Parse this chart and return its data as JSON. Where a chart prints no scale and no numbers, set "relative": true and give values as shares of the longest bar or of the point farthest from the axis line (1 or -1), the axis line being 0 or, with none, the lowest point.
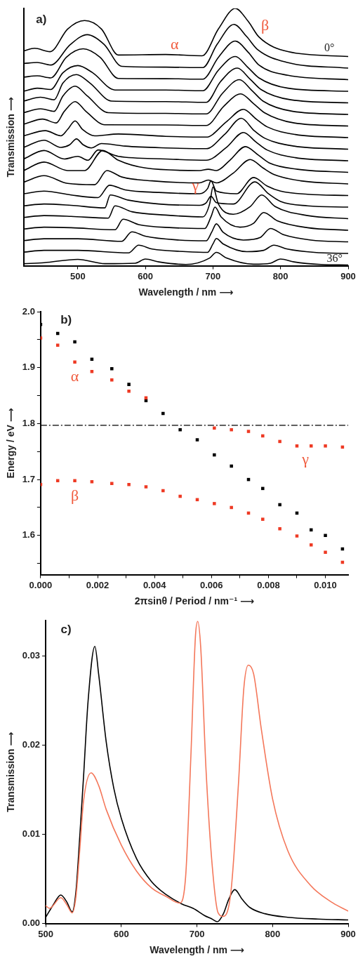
{
  "chart_data": [
    {
      "type": "line",
      "xlabel": "Wavelength / nm ⟶",
      "ylabel": "Transmission ⟶",
      "relative": true,
      "xlim": [
        420,
        900
      ],
      "xticks": [
        500,
        600,
        700,
        800,
        900
      ],
      "annotations": [
        "a)",
        "α",
        "β",
        "γ",
        "0°",
        "36°"
      ],
      "series": [
        {
          "color": "#000000",
          "x": [
            420,
            436,
            459,
            485,
            510,
            535,
            560,
            630,
            684,
            708,
            733,
            752,
            768,
            811,
            900
          ],
          "values": [
            0.835,
            0.845,
            0.832,
            0.92,
            0.953,
            0.92,
            0.819,
            0.821,
            0.816,
            0.92,
            1.0,
            0.95,
            0.889,
            0.832,
            0.813
          ]
        },
        {
          "color": "#000000",
          "x": [
            420,
            440,
            460,
            489,
            514,
            539,
            565,
            630,
            685,
            706,
            731,
            750,
            766,
            810,
            900
          ],
          "values": [
            0.786,
            0.79,
            0.78,
            0.86,
            0.898,
            0.86,
            0.775,
            0.772,
            0.77,
            0.86,
            0.938,
            0.89,
            0.84,
            0.79,
            0.768
          ]
        },
        {
          "color": "#000000",
          "x": [
            420,
            440,
            460,
            483,
            508,
            533,
            560,
            630,
            685,
            708,
            733,
            752,
            768,
            811,
            900
          ],
          "values": [
            0.733,
            0.738,
            0.73,
            0.81,
            0.843,
            0.81,
            0.728,
            0.727,
            0.725,
            0.81,
            0.873,
            0.83,
            0.78,
            0.74,
            0.723
          ]
        },
        {
          "color": "#000000",
          "x": [
            420,
            440,
            460,
            478,
            500,
            522,
            555,
            630,
            685,
            708,
            733,
            752,
            768,
            811,
            900
          ],
          "values": [
            0.678,
            0.69,
            0.685,
            0.75,
            0.778,
            0.75,
            0.683,
            0.683,
            0.68,
            0.76,
            0.813,
            0.77,
            0.73,
            0.69,
            0.678
          ]
        },
        {
          "color": "#000000",
          "x": [
            420,
            445,
            465,
            478,
            498,
            518,
            550,
            630,
            690,
            711,
            736,
            755,
            771,
            815,
            900
          ],
          "values": [
            0.64,
            0.655,
            0.645,
            0.71,
            0.743,
            0.71,
            0.64,
            0.638,
            0.635,
            0.715,
            0.768,
            0.725,
            0.685,
            0.645,
            0.633
          ]
        },
        {
          "color": "#000000",
          "x": [
            420,
            445,
            465,
            478,
            496,
            514,
            545,
            630,
            690,
            714,
            739,
            758,
            774,
            818,
            900
          ],
          "values": [
            0.595,
            0.61,
            0.6,
            0.66,
            0.698,
            0.66,
            0.595,
            0.592,
            0.59,
            0.67,
            0.723,
            0.68,
            0.64,
            0.6,
            0.588
          ]
        },
        {
          "color": "#000000",
          "x": [
            420,
            448,
            468,
            480,
            496,
            512,
            540,
            630,
            690,
            716,
            741,
            760,
            776,
            820,
            900
          ],
          "values": [
            0.55,
            0.57,
            0.555,
            0.6,
            0.638,
            0.6,
            0.548,
            0.547,
            0.545,
            0.62,
            0.668,
            0.63,
            0.595,
            0.555,
            0.543
          ]
        },
        {
          "color": "#000000",
          "x": [
            420,
            452,
            475,
            485,
            496,
            507,
            525,
            560,
            630,
            690,
            720,
            745,
            764,
            780,
            822,
            900
          ],
          "values": [
            0.505,
            0.525,
            0.505,
            0.53,
            0.563,
            0.53,
            0.505,
            0.512,
            0.503,
            0.5,
            0.56,
            0.608,
            0.57,
            0.54,
            0.51,
            0.498
          ]
        },
        {
          "color": "#000000",
          "x": [
            420,
            450,
            475,
            488,
            498,
            508,
            520,
            535,
            570,
            630,
            690,
            717,
            742,
            761,
            777,
            820,
            900
          ],
          "values": [
            0.46,
            0.488,
            0.46,
            0.47,
            0.493,
            0.47,
            0.458,
            0.475,
            0.465,
            0.458,
            0.455,
            0.51,
            0.573,
            0.525,
            0.495,
            0.465,
            0.453
          ]
        },
        {
          "color": "#000000",
          "x": [
            420,
            450,
            480,
            500,
            515,
            530,
            560,
            630,
            690,
            720,
            745,
            764,
            780,
            822,
            900
          ],
          "values": [
            0.415,
            0.448,
            0.415,
            0.425,
            0.41,
            0.45,
            0.425,
            0.415,
            0.41,
            0.46,
            0.518,
            0.48,
            0.45,
            0.42,
            0.408
          ]
        },
        {
          "color": "#000000",
          "x": [
            420,
            450,
            485,
            510,
            537,
            560,
            600,
            680,
            693,
            705,
            725,
            748,
            767,
            783,
            825,
            900
          ],
          "values": [
            0.37,
            0.403,
            0.37,
            0.37,
            0.448,
            0.41,
            0.38,
            0.37,
            0.375,
            0.37,
            0.41,
            0.463,
            0.43,
            0.4,
            0.375,
            0.363
          ]
        },
        {
          "color": "#000000",
          "x": [
            420,
            450,
            485,
            525,
            543,
            565,
            610,
            680,
            693,
            705,
            730,
            755,
            774,
            790,
            830,
            900
          ],
          "values": [
            0.325,
            0.35,
            0.32,
            0.315,
            0.37,
            0.345,
            0.33,
            0.322,
            0.333,
            0.322,
            0.36,
            0.413,
            0.38,
            0.355,
            0.33,
            0.318
          ]
        },
        {
          "color": "#000000",
          "x": [
            420,
            450,
            490,
            530,
            547,
            570,
            620,
            680,
            692,
            697,
            705,
            735,
            760,
            780,
            800,
            840,
            900
          ],
          "values": [
            0.28,
            0.29,
            0.275,
            0.265,
            0.313,
            0.295,
            0.285,
            0.28,
            0.3,
            0.33,
            0.29,
            0.28,
            0.343,
            0.31,
            0.29,
            0.278,
            0.273
          ]
        },
        {
          "color": "#000000",
          "x": [
            420,
            450,
            490,
            540,
            548,
            575,
            620,
            680,
            690,
            697,
            705,
            730,
            762,
            782,
            800,
            840,
            900
          ],
          "values": [
            0.233,
            0.24,
            0.235,
            0.225,
            0.275,
            0.255,
            0.24,
            0.235,
            0.245,
            0.27,
            0.245,
            0.24,
            0.326,
            0.28,
            0.25,
            0.233,
            0.228
          ]
        },
        {
          "color": "#000000",
          "x": [
            420,
            450,
            490,
            545,
            555,
            580,
            630,
            685,
            695,
            700,
            708,
            730,
            755,
            772,
            792,
            840,
            900
          ],
          "values": [
            0.188,
            0.195,
            0.192,
            0.185,
            0.233,
            0.21,
            0.197,
            0.19,
            0.24,
            0.306,
            0.24,
            0.2,
            0.23,
            0.275,
            0.23,
            0.195,
            0.183
          ]
        },
        {
          "color": "#000000",
          "x": [
            420,
            450,
            490,
            555,
            567,
            590,
            640,
            688,
            697,
            703,
            712,
            740,
            760,
            775,
            795,
            840,
            900
          ],
          "values": [
            0.143,
            0.15,
            0.148,
            0.14,
            0.181,
            0.16,
            0.148,
            0.145,
            0.19,
            0.228,
            0.19,
            0.15,
            0.165,
            0.207,
            0.175,
            0.148,
            0.138
          ]
        },
        {
          "color": "#000000",
          "x": [
            420,
            450,
            500,
            565,
            580,
            600,
            650,
            690,
            698,
            705,
            715,
            745,
            770,
            785,
            805,
            845,
            900
          ],
          "values": [
            0.098,
            0.105,
            0.105,
            0.095,
            0.132,
            0.115,
            0.1,
            0.097,
            0.13,
            0.163,
            0.13,
            0.1,
            0.11,
            0.145,
            0.12,
            0.1,
            0.093
          ]
        },
        {
          "color": "#000000",
          "x": [
            420,
            450,
            500,
            575,
            590,
            610,
            660,
            692,
            700,
            705,
            715,
            750,
            775,
            790,
            810,
            850,
            900
          ],
          "values": [
            0.053,
            0.06,
            0.06,
            0.05,
            0.08,
            0.065,
            0.055,
            0.052,
            0.085,
            0.106,
            0.085,
            0.055,
            0.06,
            0.08,
            0.065,
            0.052,
            0.048
          ]
        },
        {
          "color": "#000000",
          "x": [
            420,
            450,
            500,
            540,
            585,
            600,
            620,
            660,
            695,
            705,
            720,
            760,
            785,
            800,
            820,
            860,
            900
          ],
          "values": [
            0.008,
            0.012,
            0.025,
            0.008,
            0.01,
            0.026,
            0.015,
            0.005,
            0.03,
            0.052,
            0.03,
            0.006,
            0.01,
            0.026,
            0.015,
            0.005,
            0.003
          ]
        }
      ]
    },
    {
      "type": "scatter",
      "xlabel": "2πsinθ / Period / nm⁻¹ ⟶",
      "ylabel": "Energy / eV ⟶",
      "marker": "square",
      "xlim": [
        0,
        0.0108
      ],
      "ylim": [
        1.53,
        2.0
      ],
      "xticks": [
        {
          "value": 0,
          "label": "0.000"
        },
        {
          "value": 0.001,
          "label": null
        },
        {
          "value": 0.002,
          "label": "0.002"
        },
        {
          "value": 0.003,
          "label": null
        },
        {
          "value": 0.004,
          "label": "0.004"
        },
        {
          "value": 0.005,
          "label": null
        },
        {
          "value": 0.006,
          "label": "0.006"
        },
        {
          "value": 0.007,
          "label": null
        },
        {
          "value": 0.008,
          "label": "0.008"
        },
        {
          "value": 0.009,
          "label": null
        },
        {
          "value": 0.01,
          "label": "0.010"
        }
      ],
      "yticks": [
        {
          "value": 1.55,
          "label": null
        },
        {
          "value": 1.6,
          "label": "1.6"
        },
        {
          "value": 1.65,
          "label": null
        },
        {
          "value": 1.7,
          "label": "1.7"
        },
        {
          "value": 1.75,
          "label": null
        },
        {
          "value": 1.8,
          "label": "1.8"
        },
        {
          "value": 1.85,
          "label": null
        },
        {
          "value": 1.9,
          "label": "1.9"
        },
        {
          "value": 1.95,
          "label": null
        },
        {
          "value": 2.0,
          "label": "2.0"
        }
      ],
      "x": [
        0,
        0.0006,
        0.0012,
        0.0018,
        0.0025,
        0.0031,
        0.0037,
        0.0043,
        0.0049,
        0.0055,
        0.0061,
        0.0067,
        0.0073,
        0.0078,
        0.0084,
        0.009,
        0.0095,
        0.01,
        0.0106
      ],
      "ref_lines": [
        {
          "axis": "y",
          "value": 1.797,
          "color": "#000000",
          "line_style": "dashed"
        }
      ],
      "annotations": [
        "b)",
        "α",
        "β",
        "γ"
      ],
      "series": [
        {
          "color": "#ee3a24",
          "values": [
            1.953,
            1.94,
            1.91,
            1.893,
            1.878,
            1.858,
            1.846,
            null,
            null,
            null,
            1.792,
            1.789,
            1.786,
            1.778,
            1.768,
            1.76,
            1.76,
            1.76,
            1.758
          ]
        },
        {
          "color": "#ee3a24",
          "values": [
            1.691,
            1.698,
            1.698,
            1.696,
            1.693,
            1.691,
            1.687,
            1.68,
            1.67,
            1.664,
            1.657,
            1.65,
            1.64,
            1.629,
            1.612,
            1.599,
            1.583,
            1.57,
            1.552
          ]
        },
        {
          "color": "#000000",
          "values": [
            1.977,
            1.961,
            1.946,
            1.915,
            1.898,
            1.87,
            1.841,
            1.818,
            1.789,
            1.771,
            1.744,
            1.724,
            1.7,
            1.684,
            1.655,
            1.64,
            1.61,
            1.6,
            1.576
          ]
        }
      ]
    },
    {
      "type": "line",
      "xlabel": "Wavelength / nm ⟶",
      "ylabel": "Transmission ⟶",
      "xlim": [
        500,
        900
      ],
      "ylim": [
        0,
        0.034
      ],
      "xticks": [
        500,
        600,
        700,
        800,
        900
      ],
      "yticks": [
        {
          "value": 0,
          "label": "0.00"
        },
        {
          "value": 0.01,
          "label": "0.01"
        },
        {
          "value": 0.02,
          "label": "0.02"
        },
        {
          "value": 0.03,
          "label": "0.03"
        }
      ],
      "annotations": [
        "c)"
      ],
      "series": [
        {
          "color": "#f4775a",
          "x": [
            500,
            505,
            520,
            528,
            535,
            540,
            545,
            550,
            560,
            570,
            580,
            600,
            620,
            640,
            660,
            677,
            685,
            692,
            698,
            701,
            705,
            712,
            720,
            728,
            735,
            745,
            755,
            762,
            768,
            775,
            785,
            800,
            820,
            850,
            880,
            900
          ],
          "values": [
            0.002,
            0.0017,
            0.0029,
            0.0021,
            0.0012,
            0.003,
            0.0082,
            0.0137,
            0.0169,
            0.0155,
            0.0128,
            0.0088,
            0.0059,
            0.004,
            0.003,
            0.0023,
            0.0052,
            0.0188,
            0.0322,
            0.0339,
            0.031,
            0.0173,
            0.0067,
            0.0012,
            0.0008,
            0.0036,
            0.0158,
            0.0264,
            0.029,
            0.028,
            0.0219,
            0.014,
            0.0082,
            0.0043,
            0.0023,
            0.0014
          ]
        },
        {
          "color": "#000000",
          "x": [
            500,
            510,
            520,
            528,
            535,
            540,
            545,
            550,
            556,
            565,
            570,
            580,
            590,
            600,
            620,
            640,
            660,
            680,
            695,
            710,
            720,
            727,
            735,
            742,
            750,
            760,
            770,
            790,
            820,
            860,
            900
          ],
          "values": [
            0.0007,
            0.0021,
            0.0032,
            0.0024,
            0.0013,
            0.0036,
            0.0097,
            0.0164,
            0.0249,
            0.0311,
            0.028,
            0.0204,
            0.0152,
            0.0118,
            0.0073,
            0.0047,
            0.0032,
            0.0022,
            0.0017,
            0.0009,
            0.0005,
            0.0002,
            0.0011,
            0.0027,
            0.0038,
            0.0027,
            0.0018,
            0.0011,
            0.0007,
            0.0005,
            0.0004
          ]
        }
      ]
    }
  ]
}
